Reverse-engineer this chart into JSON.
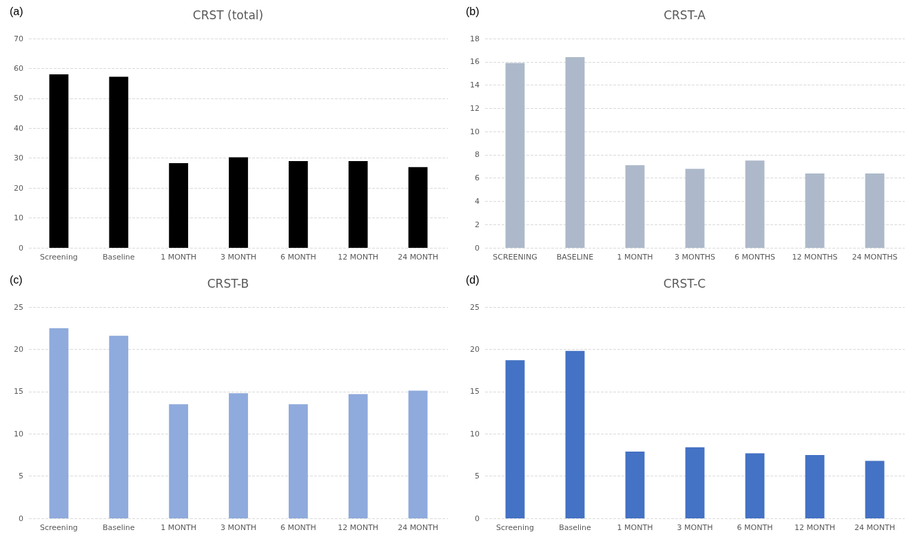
{
  "chart_data": [
    {
      "type": "bar",
      "title": "CRST (total)",
      "annotations": [
        "(a)"
      ],
      "categories": [
        "Screening",
        "Baseline",
        "1 MONTH",
        "3 MONTH",
        "6 MONTH",
        "12 MONTH",
        "24 MONTH"
      ],
      "values": [
        58,
        57.2,
        28.3,
        30.3,
        29,
        29,
        27
      ],
      "color": "#000000",
      "ylim": [
        0,
        70
      ],
      "yticks": [
        0,
        10,
        20,
        30,
        40,
        50,
        60,
        70
      ],
      "grid": "y"
    },
    {
      "type": "bar",
      "title": "CRST-A",
      "annotations": [
        "(b)"
      ],
      "categories": [
        "SCREENING",
        "BASELINE",
        "1 MONTH",
        "3 MONTHS",
        "6 MONTHS",
        "12 MONTHS",
        "24 MONTHS"
      ],
      "values": [
        15.9,
        16.4,
        7.1,
        6.8,
        7.5,
        6.4,
        6.4
      ],
      "color": "#adb9ca",
      "ylim": [
        0,
        18
      ],
      "yticks": [
        0,
        2,
        4,
        6,
        8,
        10,
        12,
        14,
        16,
        18
      ],
      "grid": "y"
    },
    {
      "type": "bar",
      "title": "CRST-B",
      "annotations": [
        "(c)"
      ],
      "categories": [
        "Screening",
        "Baseline",
        "1 MONTH",
        "3 MONTH",
        "6 MONTH",
        "12 MONTH",
        "24 MONTH"
      ],
      "values": [
        22.5,
        21.6,
        13.5,
        14.8,
        13.5,
        14.7,
        15.1
      ],
      "color": "#8faadc",
      "ylim": [
        0,
        25
      ],
      "yticks": [
        0,
        5,
        10,
        15,
        20,
        25
      ],
      "grid": "y"
    },
    {
      "type": "bar",
      "title": "CRST-C",
      "annotations": [
        "(d)"
      ],
      "categories": [
        "Screening",
        "Baseline",
        "1 MONTH",
        "3 MONTH",
        "6 MONTH",
        "12 MONTH",
        "24 MONTH"
      ],
      "values": [
        18.7,
        19.8,
        7.9,
        8.4,
        7.7,
        7.5,
        6.8
      ],
      "color": "#4472c4",
      "ylim": [
        0,
        25
      ],
      "yticks": [
        0,
        5,
        10,
        15,
        20,
        25
      ],
      "grid": "y"
    }
  ]
}
